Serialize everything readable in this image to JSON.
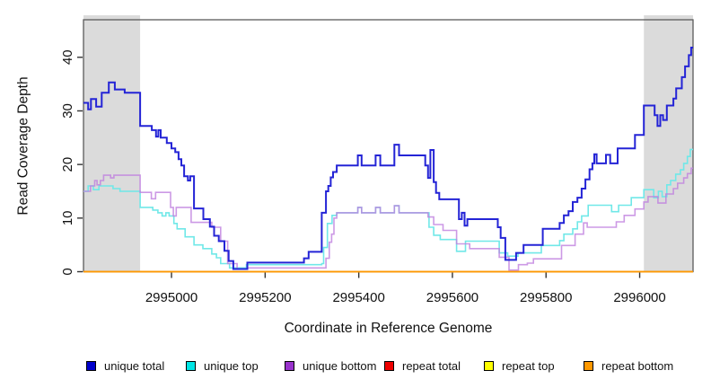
{
  "figure": {
    "x_axis_label": "Coordinate in Reference Genome",
    "y_axis_label": "Read Coverage Depth"
  },
  "legend": {
    "items": [
      {
        "label": "unique total",
        "color": "#0000CC"
      },
      {
        "label": "unique top",
        "color": "#00E5E5"
      },
      {
        "label": "unique bottom",
        "color": "#9933CC"
      },
      {
        "label": "repeat total",
        "color": "#EE0000"
      },
      {
        "label": "repeat top",
        "color": "#FFFF00"
      },
      {
        "label": "repeat bottom",
        "color": "#FF9900"
      }
    ]
  },
  "chart_data": {
    "type": "line",
    "step": true,
    "title": "",
    "xlabel": "Coordinate in Reference Genome",
    "ylabel": "Read Coverage Depth",
    "xlim": [
      2994812,
      2996114
    ],
    "ylim": [
      0,
      47
    ],
    "x_ticks": [
      2995000,
      2995200,
      2995400,
      2995600,
      2995800,
      2996000
    ],
    "y_ticks": [
      0,
      10,
      20,
      30,
      40
    ],
    "grid": false,
    "legend_position": "bottom",
    "shaded_regions": [
      {
        "x0": 2994812,
        "x1": 2994933,
        "color": "#DBDBDB"
      },
      {
        "x0": 2996009,
        "x1": 2996114,
        "color": "#DBDBDB"
      }
    ],
    "series": [
      {
        "name": "repeat total",
        "line_color": "#DD0000",
        "width": 1.2,
        "opacity": 1,
        "points": [
          [
            2994812,
            0
          ]
        ]
      },
      {
        "name": "repeat top",
        "line_color": "#FFFF00",
        "width": 1.2,
        "opacity": 1,
        "points": [
          [
            2994812,
            0
          ]
        ]
      },
      {
        "name": "repeat bottom",
        "line_color": "#FF9900",
        "width": 1.8,
        "opacity": 1,
        "points": [
          [
            2994812,
            0
          ]
        ]
      },
      {
        "name": "unique top",
        "line_color": "#70E8E8",
        "width": 1.6,
        "opacity": 1,
        "points": [
          [
            2994812,
            15
          ],
          [
            2994822,
            16
          ],
          [
            2994833,
            15.3
          ],
          [
            2994845,
            16
          ],
          [
            2994875,
            15.5
          ],
          [
            2994890,
            15
          ],
          [
            2994933,
            12
          ],
          [
            2994960,
            11.5
          ],
          [
            2994971,
            11
          ],
          [
            2994980,
            10.4
          ],
          [
            2994988,
            11
          ],
          [
            2994995,
            10.4
          ],
          [
            2995005,
            9
          ],
          [
            2995012,
            8
          ],
          [
            2995029,
            6.5
          ],
          [
            2995048,
            5
          ],
          [
            2995067,
            4.3
          ],
          [
            2995086,
            3.3
          ],
          [
            2995096,
            2.6
          ],
          [
            2995105,
            1.5
          ],
          [
            2995124,
            0.7
          ],
          [
            2995160,
            1.3
          ],
          [
            2995321,
            1.5
          ],
          [
            2995325,
            4.5
          ],
          [
            2995333,
            9
          ],
          [
            2995343,
            10.5
          ],
          [
            2995353,
            11
          ],
          [
            2995398,
            12
          ],
          [
            2995406,
            11
          ],
          [
            2995436,
            12
          ],
          [
            2995446,
            11
          ],
          [
            2995476,
            12.3
          ],
          [
            2995486,
            11
          ],
          [
            2995550,
            8.3
          ],
          [
            2995560,
            6.8
          ],
          [
            2995574,
            6
          ],
          [
            2995609,
            3.8
          ],
          [
            2995628,
            5.7
          ],
          [
            2995700,
            3.5
          ],
          [
            2995718,
            2.9
          ],
          [
            2995740,
            3.5
          ],
          [
            2995790,
            4.9
          ],
          [
            2995829,
            5.8
          ],
          [
            2995838,
            7
          ],
          [
            2995857,
            8
          ],
          [
            2995867,
            9.3
          ],
          [
            2995876,
            10.4
          ],
          [
            2995890,
            12.4
          ],
          [
            2995940,
            11.2
          ],
          [
            2995955,
            12.4
          ],
          [
            2995982,
            13.8
          ],
          [
            2996009,
            15.3
          ],
          [
            2996030,
            13.8
          ],
          [
            2996040,
            15
          ],
          [
            2996048,
            14
          ],
          [
            2996058,
            16.2
          ],
          [
            2996066,
            17
          ],
          [
            2996077,
            18.2
          ],
          [
            2996087,
            19
          ],
          [
            2996094,
            20.2
          ],
          [
            2996102,
            21.5
          ],
          [
            2996108,
            22.8
          ]
        ]
      },
      {
        "name": "unique bottom",
        "line_color": "#BF7FDF",
        "width": 1.6,
        "opacity": 0.8,
        "points": [
          [
            2994812,
            15
          ],
          [
            2994827,
            16
          ],
          [
            2994836,
            17
          ],
          [
            2994841,
            16.2
          ],
          [
            2994848,
            17
          ],
          [
            2994855,
            18
          ],
          [
            2994870,
            17.5
          ],
          [
            2994877,
            18
          ],
          [
            2994933,
            14.8
          ],
          [
            2994957,
            13.6
          ],
          [
            2994966,
            14.8
          ],
          [
            2994998,
            12
          ],
          [
            2995004,
            10.4
          ],
          [
            2995010,
            12
          ],
          [
            2995042,
            9.2
          ],
          [
            2995086,
            8.3
          ],
          [
            2995105,
            5.7
          ],
          [
            2995120,
            1.5
          ],
          [
            2995140,
            0.5
          ],
          [
            2995162,
            0.7
          ],
          [
            2995330,
            2.5
          ],
          [
            2995337,
            5.5
          ],
          [
            2995342,
            7
          ],
          [
            2995347,
            10
          ],
          [
            2995353,
            11
          ],
          [
            2995398,
            12
          ],
          [
            2995406,
            11
          ],
          [
            2995436,
            12
          ],
          [
            2995446,
            11
          ],
          [
            2995476,
            12.3
          ],
          [
            2995486,
            11
          ],
          [
            2995548,
            10.2
          ],
          [
            2995560,
            8.8
          ],
          [
            2995580,
            7.7
          ],
          [
            2995609,
            5.2
          ],
          [
            2995637,
            4.3
          ],
          [
            2995700,
            2.7
          ],
          [
            2995721,
            0.3
          ],
          [
            2995741,
            1.3
          ],
          [
            2995760,
            1.6
          ],
          [
            2995773,
            2.4
          ],
          [
            2995833,
            4.9
          ],
          [
            2995862,
            7
          ],
          [
            2995880,
            9.1
          ],
          [
            2995888,
            8.3
          ],
          [
            2995950,
            9.3
          ],
          [
            2995967,
            10.5
          ],
          [
            2995990,
            11.7
          ],
          [
            2996009,
            13
          ],
          [
            2996018,
            14
          ],
          [
            2996039,
            12.8
          ],
          [
            2996056,
            14.5
          ],
          [
            2996072,
            15.5
          ],
          [
            2996081,
            16.5
          ],
          [
            2996094,
            17.5
          ],
          [
            2996102,
            18.3
          ],
          [
            2996110,
            19.3
          ]
        ]
      },
      {
        "name": "unique total",
        "line_color": "#2424D6",
        "width": 2,
        "opacity": 1,
        "points": [
          [
            2994812,
            31.5
          ],
          [
            2994822,
            30.3
          ],
          [
            2994828,
            32.2
          ],
          [
            2994839,
            30.8
          ],
          [
            2994851,
            33.4
          ],
          [
            2994866,
            35.3
          ],
          [
            2994879,
            34
          ],
          [
            2994900,
            33.4
          ],
          [
            2994933,
            27.2
          ],
          [
            2994958,
            26.4
          ],
          [
            2994967,
            25.2
          ],
          [
            2994972,
            26.4
          ],
          [
            2994977,
            25
          ],
          [
            2994990,
            24
          ],
          [
            2995000,
            23
          ],
          [
            2995008,
            22.3
          ],
          [
            2995015,
            21
          ],
          [
            2995021,
            19.8
          ],
          [
            2995027,
            17.8
          ],
          [
            2995035,
            17
          ],
          [
            2995040,
            17.8
          ],
          [
            2995048,
            11.8
          ],
          [
            2995068,
            9.8
          ],
          [
            2995082,
            8.4
          ],
          [
            2995091,
            6.7
          ],
          [
            2995101,
            5.7
          ],
          [
            2995113,
            3.9
          ],
          [
            2995122,
            2
          ],
          [
            2995132,
            0.5
          ],
          [
            2995162,
            1.7
          ],
          [
            2995283,
            2.5
          ],
          [
            2995293,
            3.7
          ],
          [
            2995321,
            11
          ],
          [
            2995330,
            15
          ],
          [
            2995335,
            16
          ],
          [
            2995340,
            17.6
          ],
          [
            2995345,
            18.6
          ],
          [
            2995353,
            19.8
          ],
          [
            2995398,
            21.7
          ],
          [
            2995406,
            19.8
          ],
          [
            2995436,
            21.7
          ],
          [
            2995446,
            19.8
          ],
          [
            2995476,
            23.7
          ],
          [
            2995486,
            21.7
          ],
          [
            2995542,
            19.8
          ],
          [
            2995548,
            17.5
          ],
          [
            2995553,
            22.7
          ],
          [
            2995560,
            16.7
          ],
          [
            2995565,
            14.7
          ],
          [
            2995572,
            13.5
          ],
          [
            2995614,
            9.8
          ],
          [
            2995620,
            11
          ],
          [
            2995626,
            8.6
          ],
          [
            2995632,
            9.8
          ],
          [
            2995697,
            8.3
          ],
          [
            2995703,
            6.3
          ],
          [
            2995713,
            2.2
          ],
          [
            2995736,
            3.5
          ],
          [
            2995752,
            5
          ],
          [
            2995793,
            8
          ],
          [
            2995829,
            9.1
          ],
          [
            2995838,
            10.5
          ],
          [
            2995848,
            11.3
          ],
          [
            2995857,
            13
          ],
          [
            2995867,
            13.8
          ],
          [
            2995876,
            15.5
          ],
          [
            2995884,
            17.2
          ],
          [
            2995893,
            19.1
          ],
          [
            2995899,
            20.2
          ],
          [
            2995903,
            21.9
          ],
          [
            2995908,
            20.2
          ],
          [
            2995928,
            21.8
          ],
          [
            2995937,
            20.2
          ],
          [
            2995953,
            23
          ],
          [
            2995990,
            25.5
          ],
          [
            2996009,
            31
          ],
          [
            2996032,
            29.2
          ],
          [
            2996038,
            27.2
          ],
          [
            2996044,
            29.2
          ],
          [
            2996050,
            28.3
          ],
          [
            2996058,
            31
          ],
          [
            2996072,
            32.3
          ],
          [
            2996078,
            34.2
          ],
          [
            2996090,
            36.3
          ],
          [
            2996097,
            38.3
          ],
          [
            2996105,
            40.4
          ],
          [
            2996110,
            41.8
          ]
        ]
      }
    ]
  }
}
